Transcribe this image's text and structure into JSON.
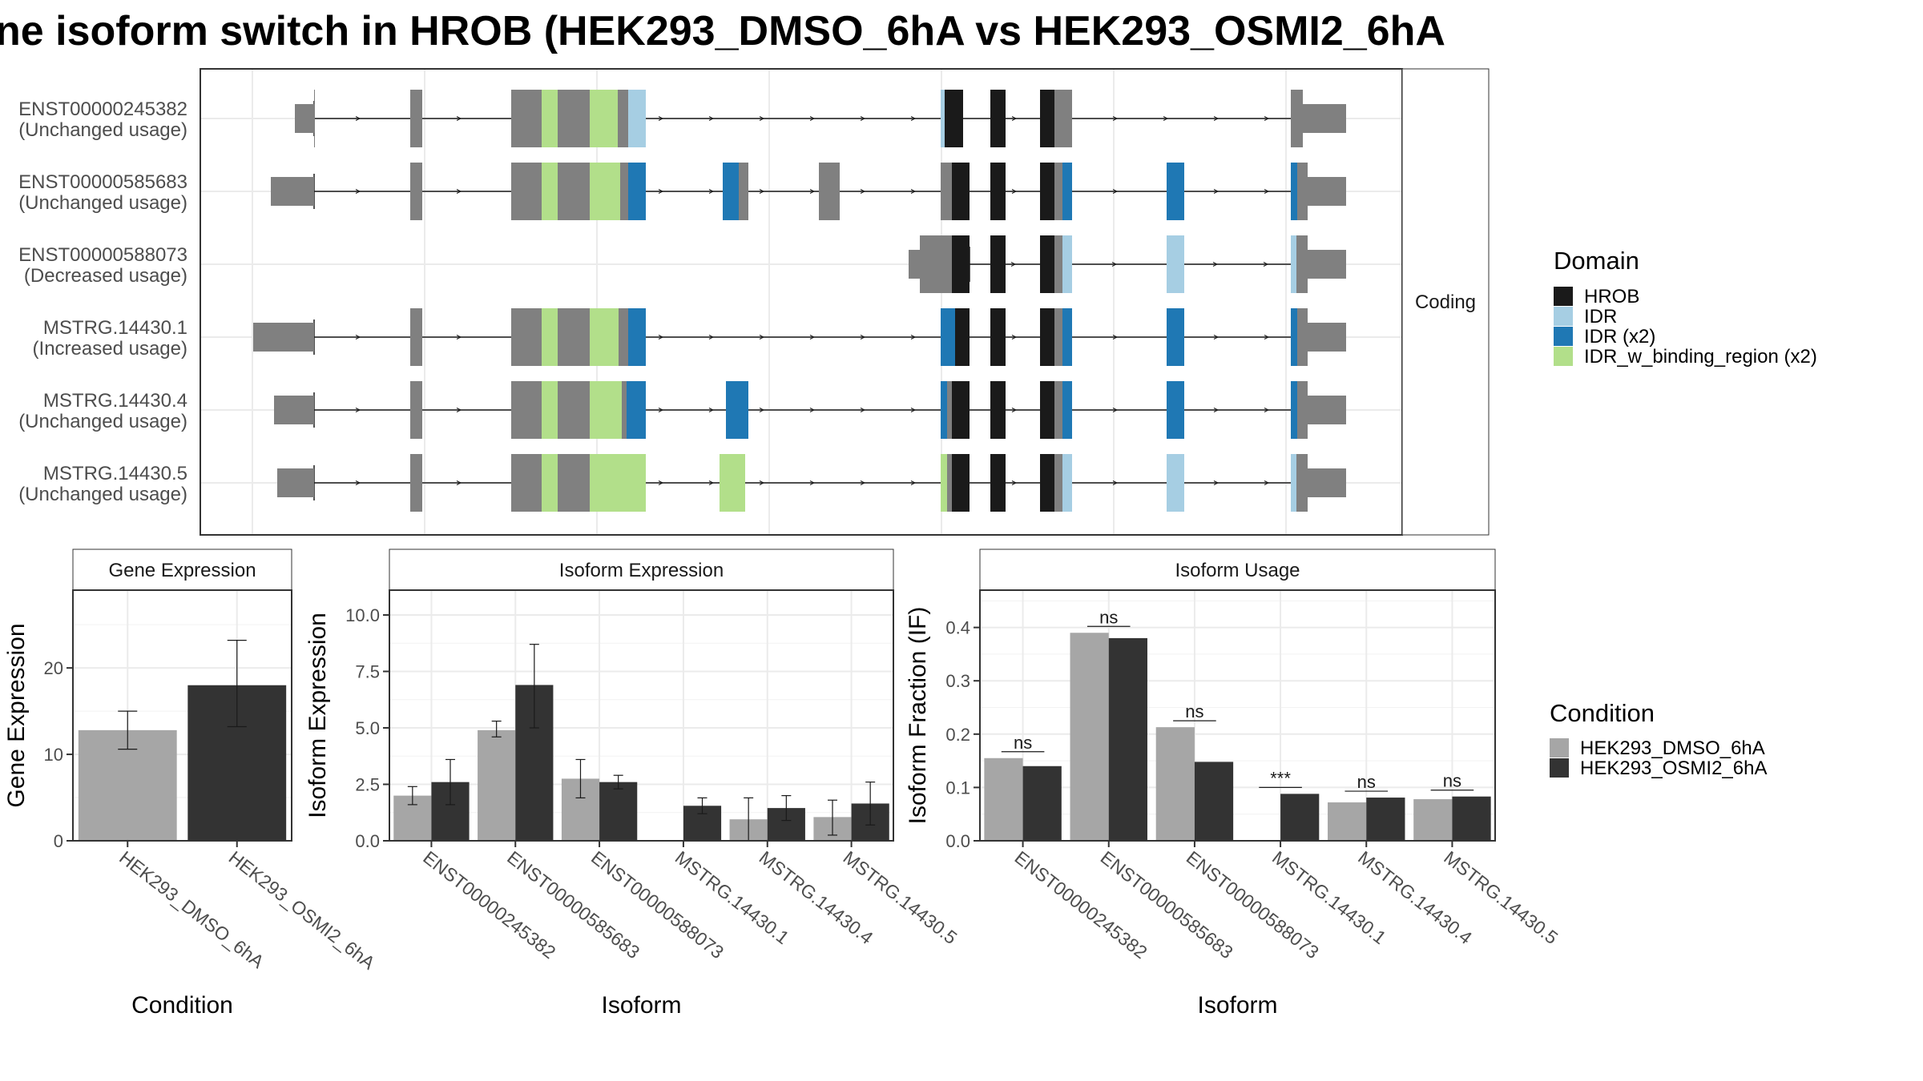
{
  "title": "ne isoform switch in HROB (HEK293_DMSO_6hA vs HEK293_OSMI2_6hA",
  "colors": {
    "HROB": "#1a1a1a",
    "IDR": "#a6cee3",
    "IDR_x2": "#1f78b4",
    "IDR_w_binding_region_x2": "#b2df8a",
    "exon": "#808080",
    "DMSO": "#a6a6a6",
    "OSMI2": "#333333"
  },
  "structure": {
    "facet_label": "Coding",
    "transcripts": [
      {
        "id": "ENST00000245382",
        "usage": "(Unchanged usage)"
      },
      {
        "id": "ENST00000585683",
        "usage": "(Unchanged usage)"
      },
      {
        "id": "ENST00000588073",
        "usage": "(Decreased usage)"
      },
      {
        "id": "MSTRG.14430.1",
        "usage": "(Increased usage)"
      },
      {
        "id": "MSTRG.14430.4",
        "usage": "(Unchanged usage)"
      },
      {
        "id": "MSTRG.14430.5",
        "usage": "(Unchanged usage)"
      }
    ]
  },
  "legend_domain": {
    "title": "Domain",
    "items": [
      {
        "label": "HROB",
        "color": "#1a1a1a"
      },
      {
        "label": "IDR",
        "color": "#a6cee3"
      },
      {
        "label": "IDR (x2)",
        "color": "#1f78b4"
      },
      {
        "label": "IDR_w_binding_region (x2)",
        "color": "#b2df8a"
      }
    ]
  },
  "legend_condition": {
    "title": "Condition",
    "items": [
      {
        "label": "HEK293_DMSO_6hA",
        "color": "#a6a6a6"
      },
      {
        "label": "HEK293_OSMI2_6hA",
        "color": "#333333"
      }
    ]
  },
  "chart_data": [
    {
      "type": "bar",
      "title": "Gene Expression",
      "xlabel": "Condition",
      "ylabel": "Gene Expression",
      "categories": [
        "HEK293_DMSO_6hA",
        "HEK293_OSMI2_6hA"
      ],
      "values": [
        12.8,
        18.0
      ],
      "errors": [
        [
          10.6,
          15.0
        ],
        [
          13.2,
          23.2
        ]
      ],
      "yticks": [
        0,
        10,
        20
      ],
      "ylim": [
        0,
        29.0
      ]
    },
    {
      "type": "bar",
      "title": "Isoform Expression",
      "xlabel": "Isoform",
      "ylabel": "Isoform Expression",
      "categories": [
        "ENST00000245382",
        "ENST00000585683",
        "ENST00000588073",
        "MSTRG.14430.1",
        "MSTRG.14430.4",
        "MSTRG.14430.5"
      ],
      "series": [
        {
          "name": "HEK293_DMSO_6hA",
          "values": [
            2.0,
            4.9,
            2.75,
            0.0,
            0.95,
            1.05
          ],
          "errors": [
            [
              1.6,
              2.4
            ],
            [
              4.6,
              5.3
            ],
            [
              1.9,
              3.6
            ],
            [
              0.0,
              0.0
            ],
            [
              0.0,
              1.9
            ],
            [
              0.25,
              1.8
            ]
          ]
        },
        {
          "name": "HEK293_OSMI2_6hA",
          "values": [
            2.6,
            6.9,
            2.6,
            1.55,
            1.45,
            1.65
          ],
          "errors": [
            [
              1.6,
              3.6
            ],
            [
              5.0,
              8.7
            ],
            [
              2.3,
              2.9
            ],
            [
              1.2,
              1.9
            ],
            [
              0.9,
              2.0
            ],
            [
              0.7,
              2.6
            ]
          ]
        }
      ],
      "yticks": [
        "0.0",
        "2.5",
        "5.0",
        "7.5",
        "10.0"
      ],
      "ylim": [
        0,
        11.1
      ]
    },
    {
      "type": "bar",
      "title": "Isoform Usage",
      "xlabel": "Isoform",
      "ylabel": "Isoform Fraction (IF)",
      "categories": [
        "ENST00000245382",
        "ENST00000585683",
        "ENST00000588073",
        "MSTRG.14430.1",
        "MSTRG.14430.4",
        "MSTRG.14430.5"
      ],
      "series": [
        {
          "name": "HEK293_DMSO_6hA",
          "values": [
            0.155,
            0.39,
            0.213,
            0.0,
            0.072,
            0.078
          ]
        },
        {
          "name": "HEK293_OSMI2_6hA",
          "values": [
            0.14,
            0.38,
            0.148,
            0.088,
            0.081,
            0.083
          ]
        }
      ],
      "significance": [
        "ns",
        "ns",
        "ns",
        "***",
        "ns",
        "ns"
      ],
      "yticks": [
        "0.0",
        "0.1",
        "0.2",
        "0.3",
        "0.4"
      ],
      "ylim": [
        0,
        0.47
      ]
    }
  ]
}
